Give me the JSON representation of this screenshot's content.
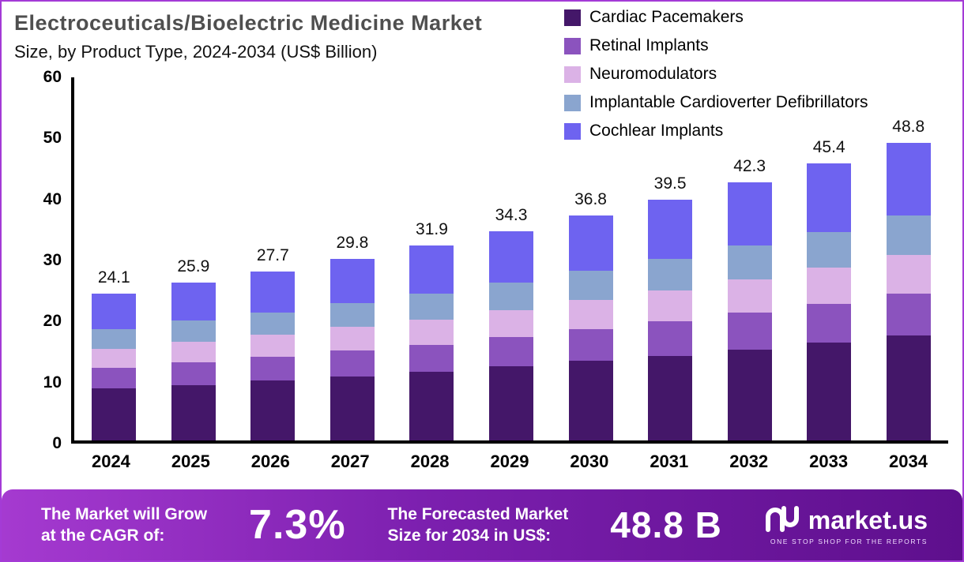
{
  "title": {
    "line1": "Electroceuticals/Bioelectric Medicine Market",
    "line2": "Size, by Product Type, 2024-2034 (US$ Billion)"
  },
  "chart_data": {
    "type": "bar",
    "stacked": true,
    "title": "Electroceuticals/Bioelectric Medicine Market Size, by Product Type, 2024-2034 (US$ Billion)",
    "categories": [
      "2024",
      "2025",
      "2026",
      "2027",
      "2028",
      "2029",
      "2030",
      "2031",
      "2032",
      "2033",
      "2034"
    ],
    "totals": [
      24.1,
      25.9,
      27.7,
      29.8,
      31.9,
      34.3,
      36.8,
      39.5,
      42.3,
      45.4,
      48.8
    ],
    "series": [
      {
        "name": "Cardiac Pacemakers",
        "color": "#441769",
        "values": [
          8.5,
          9.1,
          9.8,
          10.5,
          11.2,
          12.1,
          13.0,
          13.9,
          14.9,
          16.0,
          17.2
        ]
      },
      {
        "name": "Retinal Implants",
        "color": "#8b53be",
        "values": [
          3.4,
          3.7,
          3.9,
          4.2,
          4.5,
          4.9,
          5.2,
          5.6,
          6.0,
          6.4,
          6.9
        ]
      },
      {
        "name": "Neuromodulators",
        "color": "#dbb2e6",
        "values": [
          3.1,
          3.4,
          3.6,
          3.9,
          4.1,
          4.4,
          4.8,
          5.1,
          5.5,
          5.9,
          6.3
        ]
      },
      {
        "name": "Implantable Cardioverter Defibrillators",
        "color": "#8aa5cf",
        "values": [
          3.2,
          3.4,
          3.6,
          3.9,
          4.2,
          4.5,
          4.8,
          5.1,
          5.5,
          5.9,
          6.4
        ]
      },
      {
        "name": "Cochlear Implants",
        "color": "#6e63f0",
        "values": [
          5.9,
          6.3,
          6.8,
          7.3,
          7.9,
          8.4,
          9.0,
          9.8,
          10.4,
          11.2,
          12.0
        ]
      }
    ],
    "ylim": [
      0,
      60
    ],
    "yticks": [
      0,
      10,
      20,
      30,
      40,
      50,
      60
    ],
    "xlabel": "",
    "ylabel": "",
    "grid": false,
    "legend_position": "top-right"
  },
  "banner": {
    "cagr_label_line1": "The Market will Grow",
    "cagr_label_line2": "at the CAGR of:",
    "cagr_value": "7.3%",
    "forecast_label_line1": "The Forecasted Market",
    "forecast_label_line2": "Size for 2034 in US$:",
    "forecast_value": "48.8 B",
    "logo_text": "market.us",
    "logo_tagline": "ONE STOP SHOP FOR THE REPORTS"
  }
}
